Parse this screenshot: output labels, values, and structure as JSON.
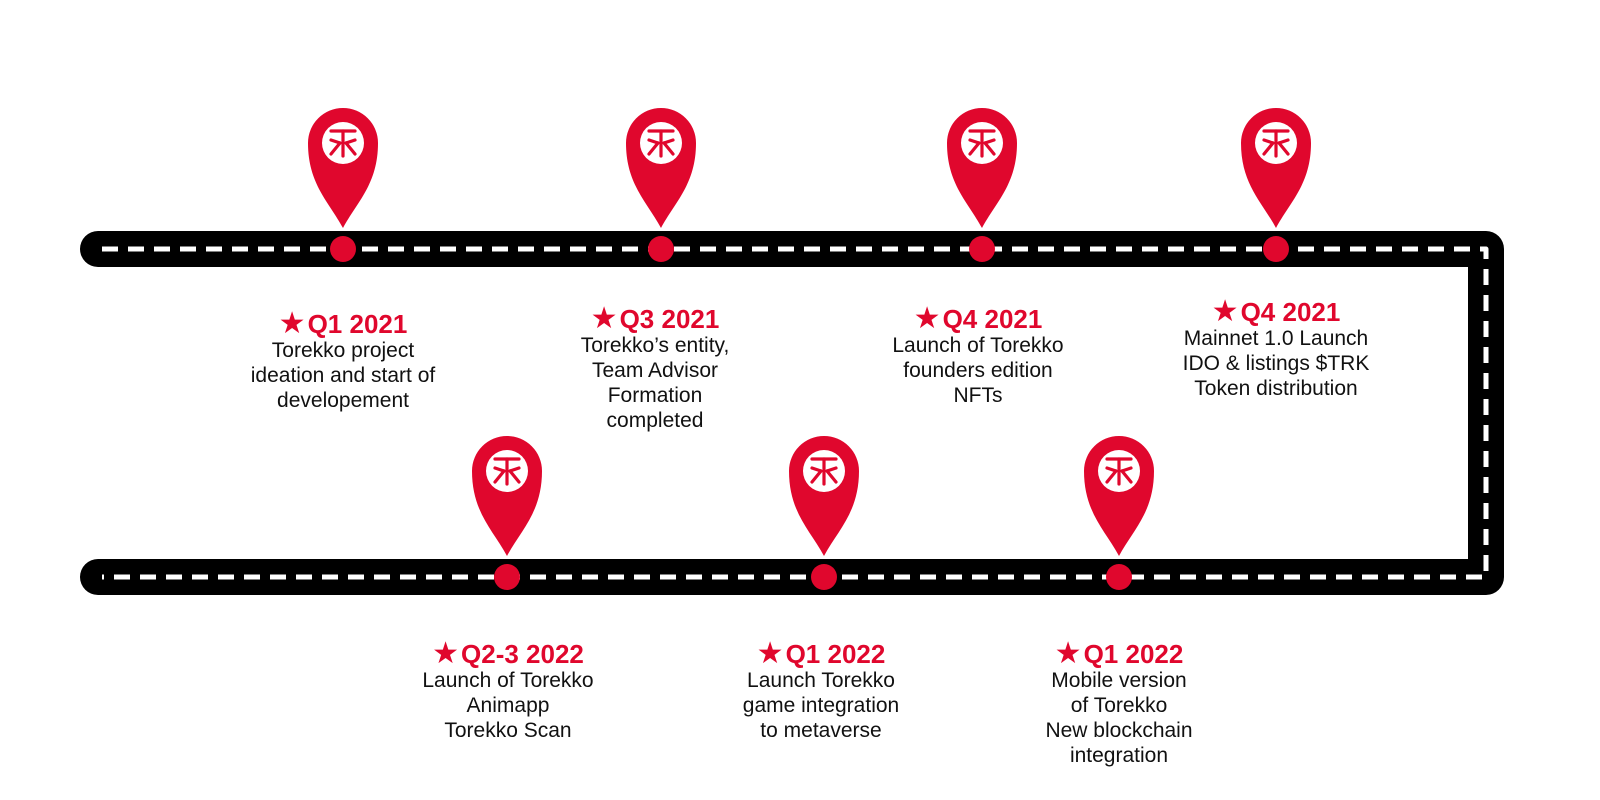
{
  "colors": {
    "road": "#000000",
    "dash": "#ffffff",
    "accent": "#e0072d"
  },
  "pin_icon": "torekko-logo-pin",
  "milestones_top": [
    {
      "period": "Q1 2021",
      "lines": [
        "Torekko project",
        "ideation and start of",
        "developement"
      ]
    },
    {
      "period": "Q3 2021",
      "lines": [
        "Torekko’s entity,",
        "Team Advisor",
        "Formation",
        "completed"
      ]
    },
    {
      "period": "Q4 2021",
      "lines": [
        "Launch of Torekko",
        "founders edition",
        "NFTs"
      ]
    },
    {
      "period": "Q4 2021",
      "lines": [
        "Mainnet 1.0 Launch",
        "IDO & listings $TRK",
        "Token distribution"
      ]
    }
  ],
  "milestones_bottom": [
    {
      "period": "Q2-3 2022",
      "lines": [
        "Launch of Torekko",
        "Animapp",
        "Torekko Scan"
      ]
    },
    {
      "period": "Q1 2022",
      "lines": [
        "Launch Torekko",
        "game integration",
        "to metaverse"
      ]
    },
    {
      "period": "Q1 2022",
      "lines": [
        "Mobile version",
        "of Torekko",
        "New blockchain",
        "integration"
      ]
    }
  ]
}
